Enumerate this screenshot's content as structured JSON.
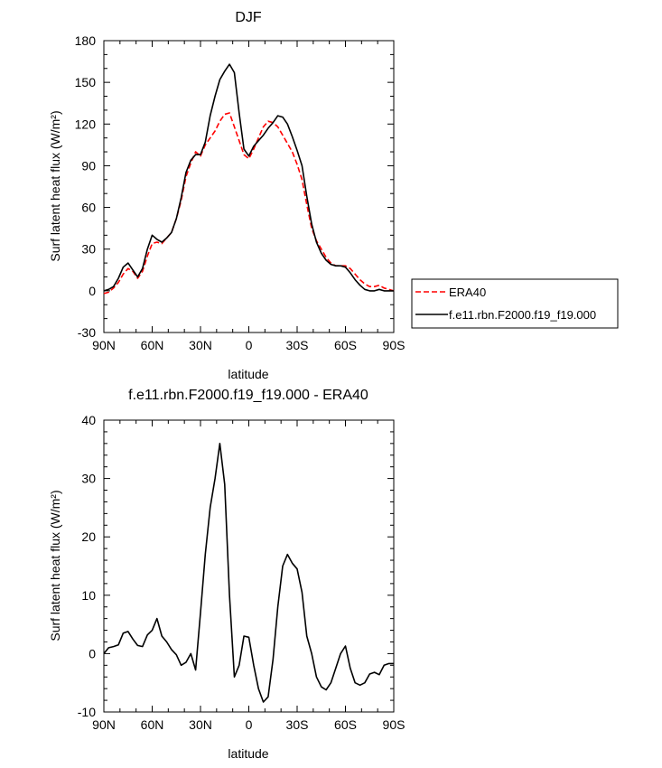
{
  "chart_data": [
    {
      "type": "line",
      "title": "DJF",
      "xlabel": "latitude",
      "ylabel": "Surf latent heat flux (W/m²)",
      "xlim": [
        90,
        -90
      ],
      "ylim": [
        -30,
        180
      ],
      "xticks": [
        90,
        60,
        30,
        0,
        -30,
        -60,
        -90
      ],
      "xtick_labels": [
        "90N",
        "60N",
        "30N",
        "0",
        "30S",
        "60S",
        "90S"
      ],
      "yticks": [
        -30,
        0,
        30,
        60,
        90,
        120,
        150,
        180
      ],
      "ytick_labels": [
        "-30",
        "0",
        "30",
        "60",
        "90",
        "120",
        "150",
        "180"
      ],
      "grid": false,
      "legend": {
        "placement": "right",
        "entries": [
          "ERA40",
          "f.e11.rbn.F2000.f19_f19.000"
        ]
      },
      "series": [
        {
          "name": "ERA40",
          "color": "#ff0000",
          "dash": "dashed",
          "x": [
            90,
            87,
            84,
            81,
            78,
            75,
            72,
            69,
            66,
            63,
            60,
            57,
            54,
            51,
            48,
            45,
            42,
            39,
            36,
            33,
            30,
            27,
            24,
            21,
            18,
            15,
            12,
            9,
            6,
            3,
            0,
            -3,
            -6,
            -9,
            -12,
            -15,
            -18,
            -21,
            -24,
            -27,
            -30,
            -33,
            -36,
            -39,
            -42,
            -45,
            -48,
            -51,
            -54,
            -57,
            -60,
            -63,
            -66,
            -69,
            -72,
            -75,
            -78,
            -81,
            -84,
            -87,
            -90
          ],
          "y": [
            -2,
            -1,
            2,
            6,
            12,
            16,
            14,
            9,
            14,
            25,
            34,
            35,
            34,
            38,
            42,
            52,
            65,
            82,
            92,
            100,
            97,
            105,
            110,
            115,
            122,
            127,
            128,
            118,
            108,
            98,
            95,
            102,
            110,
            118,
            122,
            121,
            118,
            112,
            106,
            100,
            91,
            80,
            62,
            45,
            36,
            30,
            24,
            20,
            18,
            18,
            18,
            16,
            12,
            8,
            5,
            3,
            3,
            4,
            2,
            1,
            0
          ]
        },
        {
          "name": "f.e11.rbn.F2000.f19_f19.000",
          "color": "#000000",
          "dash": "solid",
          "x": [
            90,
            87,
            84,
            81,
            78,
            75,
            72,
            69,
            66,
            63,
            60,
            57,
            54,
            51,
            48,
            45,
            42,
            39,
            36,
            33,
            30,
            27,
            24,
            21,
            18,
            15,
            12,
            9,
            6,
            3,
            0,
            -3,
            -6,
            -9,
            -12,
            -15,
            -18,
            -21,
            -24,
            -27,
            -30,
            -33,
            -36,
            -39,
            -42,
            -45,
            -48,
            -51,
            -54,
            -57,
            -60,
            -63,
            -66,
            -69,
            -72,
            -75,
            -78,
            -81,
            -84,
            -87,
            -90
          ],
          "y": [
            0,
            1,
            3,
            9,
            17,
            20,
            15,
            10,
            16,
            30,
            40,
            37,
            35,
            38,
            42,
            52,
            67,
            85,
            94,
            98,
            98,
            107,
            126,
            140,
            152,
            158,
            163,
            157,
            128,
            102,
            97,
            104,
            108,
            112,
            117,
            121,
            126,
            125,
            120,
            111,
            101,
            90,
            68,
            48,
            35,
            27,
            22,
            19,
            18,
            18,
            17,
            13,
            8,
            4,
            1,
            0,
            0,
            1,
            0,
            0,
            0
          ]
        }
      ]
    },
    {
      "type": "line",
      "title": "f.e11.rbn.F2000.f19_f19.000 - ERA40",
      "xlabel": "latitude",
      "ylabel": "Surf latent heat flux (W/m²)",
      "xlim": [
        90,
        -90
      ],
      "ylim": [
        -10,
        40
      ],
      "xticks": [
        90,
        60,
        30,
        0,
        -30,
        -60,
        -90
      ],
      "xtick_labels": [
        "90N",
        "60N",
        "30N",
        "0",
        "30S",
        "60S",
        "90S"
      ],
      "yticks": [
        -10,
        0,
        10,
        20,
        30,
        40
      ],
      "ytick_labels": [
        "-10",
        "0",
        "10",
        "20",
        "30",
        "40"
      ],
      "grid": false,
      "series": [
        {
          "color": "#000000",
          "dash": "solid",
          "x": [
            90,
            87,
            84,
            81,
            78,
            75,
            72,
            69,
            66,
            63,
            60,
            57,
            54,
            51,
            48,
            45,
            42,
            39,
            36,
            33,
            30,
            27,
            24,
            21,
            18,
            15,
            12,
            9,
            6,
            3,
            0,
            -3,
            -6,
            -9,
            -12,
            -15,
            -18,
            -21,
            -24,
            -27,
            -30,
            -33,
            -36,
            -39,
            -42,
            -45,
            -48,
            -51,
            -54,
            -57,
            -60,
            -63,
            -66,
            -69,
            -72,
            -75,
            -78,
            -81,
            -84,
            -87,
            -90
          ],
          "y": [
            0,
            1,
            1.2,
            1.5,
            3.5,
            3.8,
            2.5,
            1.4,
            1.2,
            3.2,
            4,
            6,
            3,
            2,
            0.7,
            -0.2,
            -2,
            -1.5,
            0,
            -2.8,
            7,
            17,
            25,
            30,
            36,
            29,
            10,
            -4,
            -2,
            3,
            2.8,
            -2,
            -6,
            -8.3,
            -7.4,
            -1,
            8,
            15,
            17,
            15.5,
            14.5,
            10.5,
            3,
            0,
            -4,
            -5.7,
            -6.2,
            -5,
            -2.5,
            0,
            1.3,
            -2.5,
            -5,
            -5.4,
            -5,
            -3.5,
            -3.2,
            -3.6,
            -2,
            -1.7,
            -1.7
          ]
        }
      ]
    }
  ]
}
